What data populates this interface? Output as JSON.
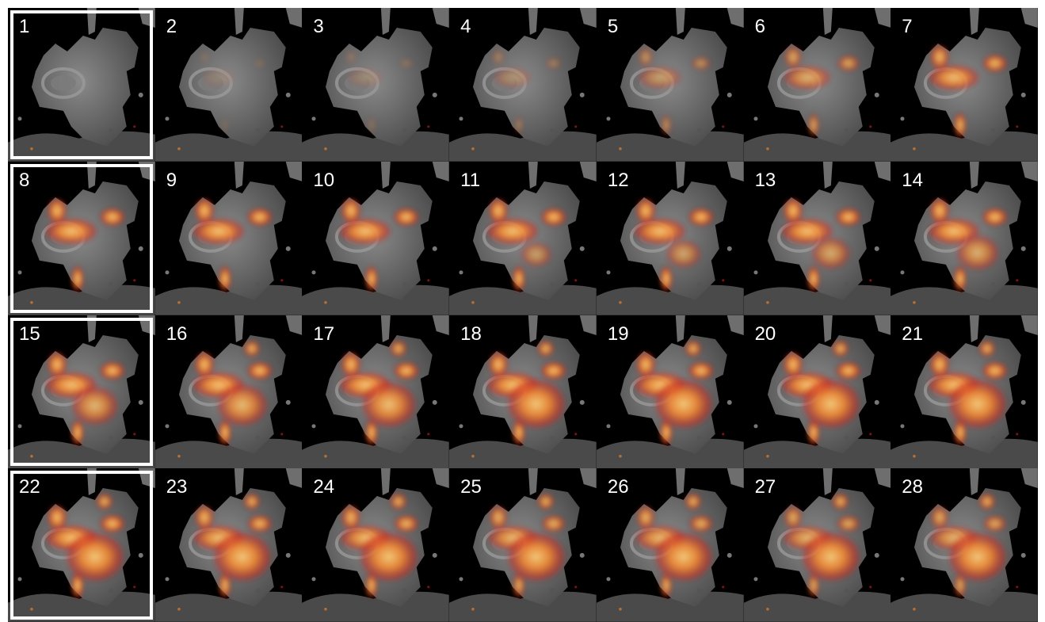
{
  "montage": {
    "columns": 7,
    "rows": 4,
    "frames": [
      {
        "label": "1",
        "uptake": 0.0,
        "highlighted": true
      },
      {
        "label": "2",
        "uptake": 0.05,
        "highlighted": false
      },
      {
        "label": "3",
        "uptake": 0.12,
        "highlighted": false
      },
      {
        "label": "4",
        "uptake": 0.25,
        "highlighted": false
      },
      {
        "label": "5",
        "uptake": 0.45,
        "highlighted": false
      },
      {
        "label": "6",
        "uptake": 0.65,
        "highlighted": false
      },
      {
        "label": "7",
        "uptake": 0.8,
        "highlighted": false
      },
      {
        "label": "8",
        "uptake": 0.85,
        "highlighted": true
      },
      {
        "label": "9",
        "uptake": 0.85,
        "highlighted": false
      },
      {
        "label": "10",
        "uptake": 0.85,
        "highlighted": false
      },
      {
        "label": "11",
        "uptake": 0.85,
        "highlighted": false
      },
      {
        "label": "12",
        "uptake": 0.85,
        "highlighted": false
      },
      {
        "label": "13",
        "uptake": 0.85,
        "highlighted": false
      },
      {
        "label": "14",
        "uptake": 0.85,
        "highlighted": false
      },
      {
        "label": "15",
        "uptake": 0.85,
        "highlighted": true
      },
      {
        "label": "16",
        "uptake": 0.85,
        "highlighted": false
      },
      {
        "label": "17",
        "uptake": 0.85,
        "highlighted": false
      },
      {
        "label": "18",
        "uptake": 0.85,
        "highlighted": false
      },
      {
        "label": "19",
        "uptake": 0.85,
        "highlighted": false
      },
      {
        "label": "20",
        "uptake": 0.85,
        "highlighted": false
      },
      {
        "label": "21",
        "uptake": 0.85,
        "highlighted": false
      },
      {
        "label": "22",
        "uptake": 0.85,
        "highlighted": true
      },
      {
        "label": "23",
        "uptake": 0.8,
        "highlighted": false
      },
      {
        "label": "24",
        "uptake": 0.8,
        "highlighted": false
      },
      {
        "label": "25",
        "uptake": 0.75,
        "highlighted": false
      },
      {
        "label": "26",
        "uptake": 0.75,
        "highlighted": false
      },
      {
        "label": "27",
        "uptake": 0.7,
        "highlighted": false
      },
      {
        "label": "28",
        "uptake": 0.7,
        "highlighted": false
      }
    ]
  },
  "colors": {
    "background": "#000000",
    "tissue": "#6e6e6e",
    "tissue_dark": "#4a4a4a",
    "uptake_core": "#ffd27a",
    "uptake_mid": "#ff8a2a",
    "uptake_edge": "#c8221e",
    "frame_border": "#ffffff"
  }
}
